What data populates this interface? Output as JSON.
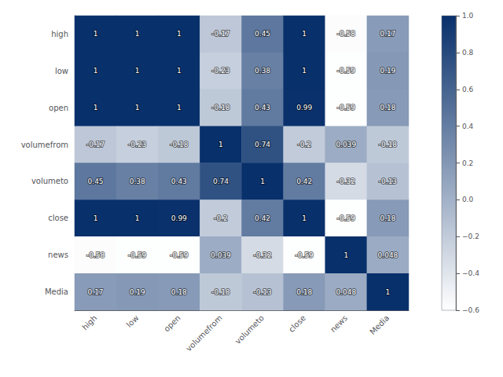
{
  "chart_data": {
    "type": "heatmap",
    "categories": [
      "high",
      "low",
      "open",
      "volumefrom",
      "volumeto",
      "close",
      "news",
      "Media"
    ],
    "values": [
      [
        1,
        1,
        1,
        -0.17,
        0.45,
        1,
        -0.58,
        0.17
      ],
      [
        1,
        1,
        1,
        -0.23,
        0.38,
        1,
        -0.59,
        0.19
      ],
      [
        1,
        1,
        1,
        -0.18,
        0.43,
        0.99,
        -0.59,
        0.18
      ],
      [
        -0.17,
        -0.23,
        -0.18,
        1,
        0.74,
        -0.2,
        0.039,
        -0.18
      ],
      [
        0.45,
        0.38,
        0.43,
        0.74,
        1,
        0.42,
        -0.32,
        -0.13
      ],
      [
        1,
        1,
        0.99,
        -0.2,
        0.42,
        1,
        -0.59,
        0.18
      ],
      [
        -0.58,
        -0.59,
        -0.59,
        0.039,
        -0.32,
        -0.59,
        1,
        0.048
      ],
      [
        0.17,
        0.19,
        0.18,
        -0.18,
        -0.13,
        0.18,
        0.048,
        1
      ]
    ],
    "data_labels": true,
    "color": "#08306b",
    "colorbar": {
      "range": [
        -0.6,
        1.0
      ],
      "ticks": [
        {
          "value": 1.0,
          "label": "1.0"
        },
        {
          "value": 0.8,
          "label": "0.8"
        },
        {
          "value": 0.6,
          "label": "0.6"
        },
        {
          "value": 0.4,
          "label": "0.4"
        },
        {
          "value": 0.2,
          "label": "0.2"
        },
        {
          "value": 0.0,
          "label": "0.0"
        },
        {
          "value": -0.2,
          "label": "−0.2"
        },
        {
          "value": -0.4,
          "label": "−0.4"
        },
        {
          "value": -0.6,
          "label": "−0.6"
        }
      ]
    }
  }
}
